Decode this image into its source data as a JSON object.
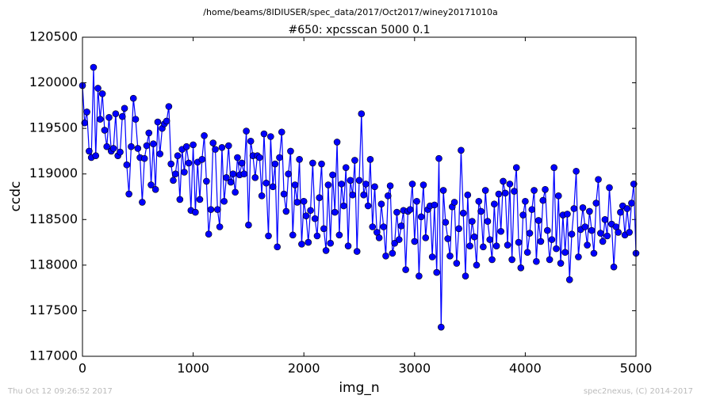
{
  "chart_data": {
    "type": "line",
    "suptitle": "/home/beams/8IDIUSER/spec_data/2017/Oct2017/winey20171010a",
    "title": "#650: xpcsscan 5000 0.1",
    "x_label": "img_n",
    "y_label": "ccdc",
    "timestamp": "Thu Oct 12 09:26:52 2017",
    "credit": "spec2nexus, (C) 2014-2017",
    "xlim": [
      0,
      5000
    ],
    "xticks": [
      0,
      1000,
      2000,
      3000,
      4000,
      5000
    ],
    "ylim": [
      117000,
      120500
    ],
    "yticks": [
      117000,
      117500,
      118000,
      118500,
      119000,
      119500,
      120000,
      120500
    ],
    "x": [
      0,
      20,
      40,
      60,
      80,
      100,
      120,
      140,
      160,
      180,
      200,
      220,
      240,
      260,
      280,
      300,
      320,
      340,
      360,
      380,
      400,
      420,
      440,
      460,
      480,
      500,
      520,
      540,
      560,
      580,
      600,
      620,
      640,
      660,
      680,
      700,
      720,
      740,
      760,
      780,
      800,
      820,
      840,
      860,
      880,
      900,
      920,
      940,
      960,
      980,
      1000,
      1020,
      1040,
      1060,
      1080,
      1100,
      1120,
      1140,
      1160,
      1180,
      1200,
      1220,
      1240,
      1260,
      1280,
      1300,
      1320,
      1340,
      1360,
      1380,
      1400,
      1420,
      1440,
      1460,
      1480,
      1500,
      1520,
      1540,
      1560,
      1580,
      1600,
      1620,
      1640,
      1660,
      1680,
      1700,
      1720,
      1740,
      1760,
      1780,
      1800,
      1820,
      1840,
      1860,
      1880,
      1900,
      1920,
      1940,
      1960,
      1980,
      2000,
      2020,
      2040,
      2060,
      2080,
      2100,
      2120,
      2140,
      2160,
      2180,
      2200,
      2220,
      2240,
      2260,
      2280,
      2300,
      2320,
      2340,
      2360,
      2380,
      2400,
      2420,
      2440,
      2460,
      2480,
      2500,
      2520,
      2540,
      2560,
      2580,
      2600,
      2620,
      2640,
      2660,
      2680,
      2700,
      2720,
      2740,
      2760,
      2780,
      2800,
      2820,
      2840,
      2860,
      2880,
      2900,
      2920,
      2940,
      2960,
      2980,
      3000,
      3020,
      3040,
      3060,
      3080,
      3100,
      3120,
      3140,
      3160,
      3180,
      3200,
      3220,
      3240,
      3260,
      3280,
      3300,
      3320,
      3340,
      3360,
      3380,
      3400,
      3420,
      3440,
      3460,
      3480,
      3500,
      3520,
      3540,
      3560,
      3580,
      3600,
      3620,
      3640,
      3660,
      3680,
      3700,
      3720,
      3740,
      3760,
      3780,
      3800,
      3820,
      3840,
      3860,
      3880,
      3900,
      3920,
      3940,
      3960,
      3980,
      4000,
      4020,
      4040,
      4060,
      4080,
      4100,
      4120,
      4140,
      4160,
      4180,
      4200,
      4220,
      4240,
      4260,
      4280,
      4300,
      4320,
      4340,
      4360,
      4380,
      4400,
      4420,
      4440,
      4460,
      4480,
      4500,
      4520,
      4540,
      4560,
      4580,
      4600,
      4620,
      4640,
      4660,
      4680,
      4700,
      4720,
      4740,
      4760,
      4780,
      4800,
      4820,
      4840,
      4860,
      4880,
      4900,
      4920,
      4940,
      4960,
      4980,
      5000
    ],
    "series": [
      {
        "color": "#0000ff",
        "values": [
          119970,
          119560,
          119680,
          119250,
          119180,
          120170,
          119200,
          119940,
          119600,
          119880,
          119480,
          119300,
          119620,
          119250,
          119280,
          119660,
          119200,
          119240,
          119630,
          119720,
          119100,
          118780,
          119300,
          119830,
          119600,
          119280,
          119180,
          118690,
          119170,
          119310,
          119450,
          118880,
          119330,
          118830,
          119570,
          119220,
          119500,
          119550,
          119580,
          119740,
          119110,
          118930,
          119000,
          119200,
          118720,
          119270,
          119020,
          119300,
          119120,
          118600,
          119320,
          118580,
          119130,
          118720,
          119160,
          119420,
          118920,
          118340,
          118610,
          119340,
          119270,
          118610,
          118420,
          119290,
          118700,
          118960,
          119310,
          118910,
          119000,
          118800,
          119180,
          118990,
          119120,
          119000,
          119470,
          118440,
          119360,
          119200,
          118960,
          119200,
          119180,
          118760,
          119440,
          118900,
          118320,
          119410,
          118860,
          119110,
          118200,
          119180,
          119460,
          118780,
          118590,
          119000,
          119250,
          118330,
          118880,
          118690,
          119160,
          118230,
          118700,
          118540,
          118250,
          118600,
          119120,
          118510,
          118320,
          118740,
          119110,
          118400,
          118160,
          118880,
          118240,
          118990,
          118580,
          119350,
          118330,
          118890,
          118650,
          119070,
          118210,
          118930,
          118770,
          119150,
          118150,
          118930,
          119660,
          118770,
          118890,
          118650,
          119160,
          118420,
          118860,
          118360,
          118300,
          118670,
          118420,
          118100,
          118760,
          118870,
          118130,
          118240,
          118580,
          118280,
          118430,
          118600,
          117950,
          118590,
          118610,
          118890,
          118260,
          118700,
          117880,
          118530,
          118880,
          118300,
          118610,
          118650,
          118090,
          118660,
          117920,
          119170,
          117320,
          118820,
          118470,
          118290,
          118100,
          118640,
          118690,
          118020,
          118400,
          119260,
          118570,
          117880,
          118770,
          118210,
          118480,
          118310,
          118000,
          118700,
          118590,
          118200,
          118820,
          118480,
          118280,
          118060,
          118670,
          118210,
          118780,
          118370,
          118920,
          118790,
          118220,
          118890,
          118060,
          118810,
          119070,
          118250,
          117970,
          118550,
          118700,
          118140,
          118350,
          118610,
          118820,
          118040,
          118490,
          118260,
          118710,
          118830,
          118380,
          118060,
          118280,
          119070,
          118180,
          118760,
          118020,
          118550,
          118140,
          118560,
          117840,
          118340,
          118620,
          119030,
          118090,
          118390,
          118630,
          118420,
          118220,
          118590,
          118380,
          118130,
          118680,
          118940,
          118350,
          118260,
          118500,
          118320,
          118850,
          118450,
          117980,
          118420,
          118360,
          118580,
          118650,
          118330,
          118620,
          118360,
          118680,
          118890,
          118130
        ]
      }
    ]
  }
}
